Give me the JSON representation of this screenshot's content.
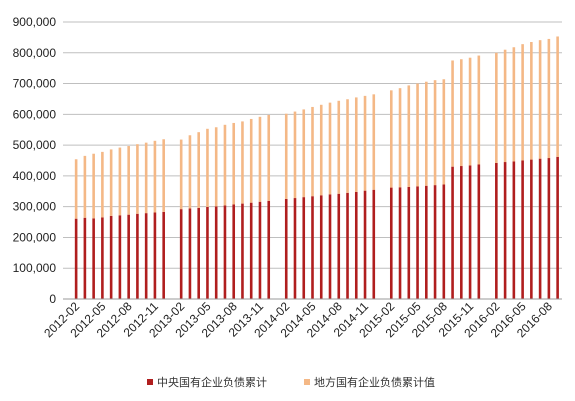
{
  "chart_data": {
    "type": "bar",
    "stacked": true,
    "grid": true,
    "legend_position": "bottom",
    "ylim": [
      0,
      900000
    ],
    "y_ticks": [
      "0",
      "100,000",
      "200,000",
      "300,000",
      "400,000",
      "500,000",
      "600,000",
      "700,000",
      "800,000",
      "900,000"
    ],
    "x_tick_labels": [
      "2012-02",
      "2012-05",
      "2012-08",
      "2012-11",
      "2013-02",
      "2013-05",
      "2013-08",
      "2013-11",
      "2014-02",
      "2014-05",
      "2014-08",
      "2014-11",
      "2015-02",
      "2015-05",
      "2015-08",
      "2015-11",
      "2016-02",
      "2016-05",
      "2016-08"
    ],
    "categories": [
      "2012-01",
      "2012-02",
      "2012-03",
      "2012-04",
      "2012-05",
      "2012-06",
      "2012-07",
      "2012-08",
      "2012-09",
      "2012-10",
      "2012-11",
      "2012-12",
      "2013-01",
      "2013-02",
      "2013-03",
      "2013-04",
      "2013-05",
      "2013-06",
      "2013-07",
      "2013-08",
      "2013-09",
      "2013-10",
      "2013-11",
      "2013-12",
      "2014-01",
      "2014-02",
      "2014-03",
      "2014-04",
      "2014-05",
      "2014-06",
      "2014-07",
      "2014-08",
      "2014-09",
      "2014-10",
      "2014-11",
      "2014-12",
      "2015-01",
      "2015-02",
      "2015-03",
      "2015-04",
      "2015-05",
      "2015-06",
      "2015-07",
      "2015-08",
      "2015-09",
      "2015-10",
      "2015-11",
      "2015-12",
      "2016-01",
      "2016-02",
      "2016-03",
      "2016-04",
      "2016-05",
      "2016-06",
      "2016-07",
      "2016-08",
      "2016-09"
    ],
    "series": [
      {
        "name": "中央国有企业负债累计",
        "color": "#b01e1e",
        "values": [
          null,
          261000,
          264000,
          262000,
          265000,
          270000,
          272000,
          274000,
          277000,
          279000,
          281000,
          283000,
          null,
          292000,
          294000,
          296000,
          299000,
          301000,
          304000,
          307000,
          310000,
          313000,
          316000,
          319000,
          null,
          325000,
          328000,
          331000,
          334000,
          337000,
          340000,
          342000,
          345000,
          348000,
          352000,
          355000,
          null,
          362000,
          363000,
          364000,
          366000,
          368000,
          370000,
          372000,
          430000,
          432000,
          434000,
          437000,
          null,
          442000,
          445000,
          447000,
          450000,
          453000,
          456000,
          458000,
          462000
        ]
      },
      {
        "name": "地方国有企业负债累计值",
        "color": "#f4b886",
        "values": [
          null,
          193000,
          201000,
          210000,
          213000,
          216000,
          220000,
          223000,
          226000,
          229000,
          233000,
          236000,
          null,
          226000,
          238000,
          246000,
          254000,
          257000,
          262000,
          265000,
          267000,
          272000,
          276000,
          279000,
          null,
          277000,
          281000,
          285000,
          290000,
          294000,
          298000,
          302000,
          304000,
          307000,
          308000,
          310000,
          null,
          316000,
          322000,
          330000,
          334000,
          338000,
          341000,
          342000,
          345000,
          347000,
          350000,
          354000,
          null,
          358000,
          365000,
          371000,
          378000,
          382000,
          385000,
          387000,
          391000
        ]
      }
    ]
  }
}
